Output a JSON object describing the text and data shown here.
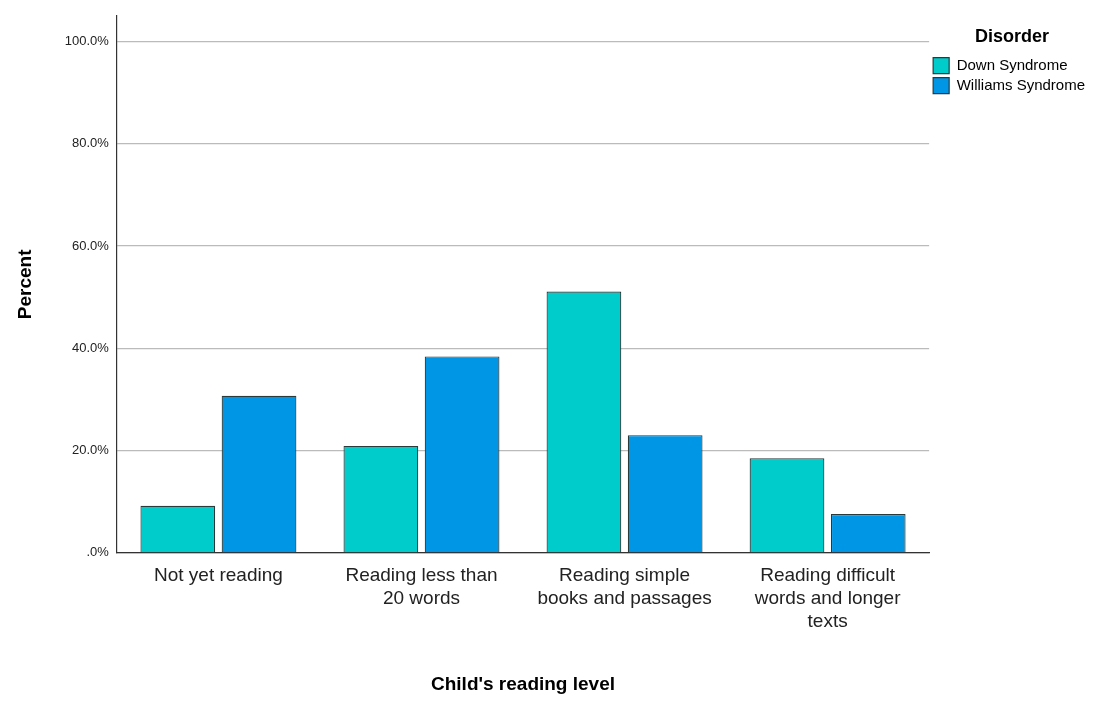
{
  "chart_data": {
    "type": "bar",
    "xlabel": "Child's reading level",
    "ylabel": "Percent",
    "legend_title": "Disorder",
    "legend": "top right",
    "grid": "y",
    "categories": [
      "Not yet reading",
      "Reading less than 20 words",
      "Reading simple books and passages",
      "Reading difficult words and longer texts"
    ],
    "series": [
      {
        "name": "Down Syndrome",
        "color": "#00cccc",
        "values": [
          9.2,
          20.9,
          51.1,
          18.5
        ]
      },
      {
        "name": "Williams Syndrome",
        "color": "#0096e6",
        "values": [
          30.7,
          38.4,
          23.0,
          7.6
        ]
      }
    ],
    "ylim": [
      0,
      105
    ],
    "yticks": [
      {
        "value": 0,
        "label": ".0%"
      },
      {
        "value": 20,
        "label": "20.0%"
      },
      {
        "value": 40,
        "label": "40.0%"
      },
      {
        "value": 60,
        "label": "60.0%"
      },
      {
        "value": 80,
        "label": "80.0%"
      },
      {
        "value": 100,
        "label": "100.0%"
      }
    ]
  }
}
